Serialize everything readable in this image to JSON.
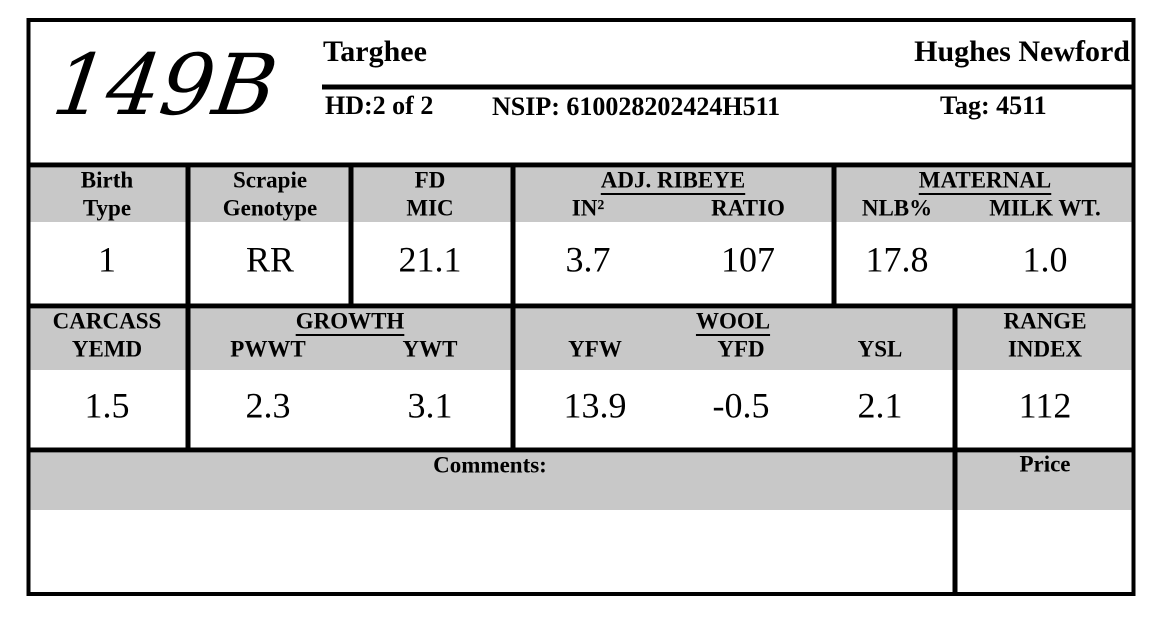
{
  "header": {
    "id": "149B",
    "breed": "Targhee",
    "owner": "Hughes Newford",
    "hd": "HD:2 of 2",
    "nsip": "NSIP: 610028202424H511",
    "tag": "Tag: 4511"
  },
  "row1": [
    {
      "label": [
        "Birth",
        "Type"
      ],
      "value": "1"
    },
    {
      "label": [
        "Scrapie",
        "Genotype"
      ],
      "value": "RR"
    },
    {
      "label": [
        "FD",
        "MIC"
      ],
      "value": "21.1"
    },
    {
      "group": "ADJ. RIBEYE",
      "columns": [
        {
          "label": "IN²",
          "value": "3.7"
        },
        {
          "label": "RATIO",
          "value": "107"
        }
      ]
    },
    {
      "group": "MATERNAL",
      "columns": [
        {
          "label": "NLB%",
          "value": "17.8"
        },
        {
          "label": "MILK WT.",
          "value": "1.0"
        }
      ]
    }
  ],
  "row2": [
    {
      "label": [
        "CARCASS",
        "YEMD"
      ],
      "value": "1.5"
    },
    {
      "group": "GROWTH",
      "columns": [
        {
          "label": "PWWT",
          "value": "2.3"
        },
        {
          "label": "YWT",
          "value": "3.1"
        }
      ]
    },
    {
      "group": "WOOL",
      "columns": [
        {
          "label": "YFW",
          "value": "13.9"
        },
        {
          "label": "YFD",
          "value": "-0.5"
        },
        {
          "label": "YSL",
          "value": "2.1"
        }
      ]
    },
    {
      "label": [
        "RANGE",
        "INDEX"
      ],
      "value": "112"
    }
  ],
  "footer": {
    "comments": "Comments:",
    "price": "Price"
  }
}
